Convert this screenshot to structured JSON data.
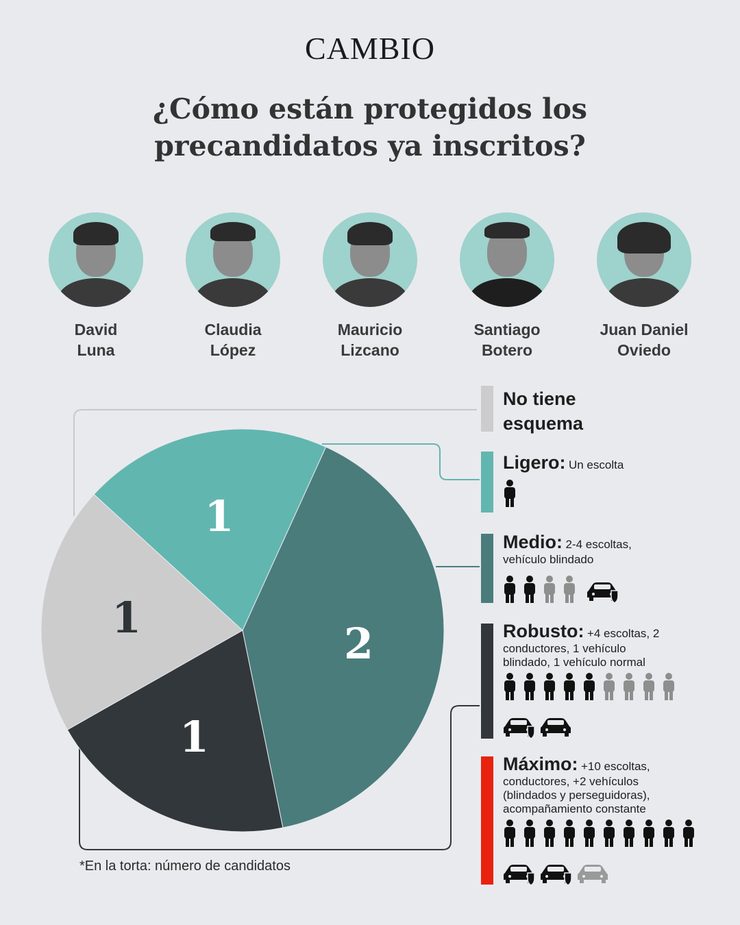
{
  "brand": "CAMBIO",
  "title": "¿Cómo están protegidos los precandidatos ya inscritos?",
  "candidates": [
    {
      "name": "David\nLuna"
    },
    {
      "name": "Claudia\nLópez"
    },
    {
      "name": "Mauricio\nLizcano"
    },
    {
      "name": "Santiago\nBotero"
    },
    {
      "name": "Juan Daniel\nOviedo"
    }
  ],
  "legend": [
    {
      "name": "No tiene esquema",
      "desc": "",
      "color": "#cccccc"
    },
    {
      "name": "Ligero:",
      "desc": "Un escolta",
      "color": "#62b6b0",
      "escorts_black": 1,
      "escorts_gray": 0,
      "cars_shield": 0,
      "cars_plain": 0
    },
    {
      "name": "Medio:",
      "desc": "2-4 escoltas, vehículo blindado",
      "color": "#4a7c7c",
      "escorts_black": 2,
      "escorts_gray": 2,
      "cars_shield": 1,
      "cars_plain": 0
    },
    {
      "name": "Robusto:",
      "desc": "+4 escoltas, 2 conductores, 1 vehículo blindado, 1 vehículo normal",
      "color": "#32373b",
      "escorts_black": 5,
      "escorts_gray": 4,
      "cars_shield": 1,
      "cars_plain": 1
    },
    {
      "name": "Máximo:",
      "desc": "+10 escoltas, conductores, +2 vehículos (blindados y perseguidoras), acompañamiento constante",
      "color": "#e8220f",
      "escorts_black": 10,
      "escorts_gray": 0,
      "cars_shield": 2,
      "cars_plain": 1
    }
  ],
  "chart_data": {
    "type": "pie",
    "slices": [
      {
        "label": "Ligero",
        "value": 1,
        "color": "#62b6b0"
      },
      {
        "label": "Medio",
        "value": 2,
        "color": "#4a7c7c"
      },
      {
        "label": "Robusto",
        "value": 1,
        "color": "#32373b"
      },
      {
        "label": "No tiene esquema",
        "value": 1,
        "color": "#cccccc"
      }
    ],
    "footnote": "*En la torta: número de candidatos"
  }
}
